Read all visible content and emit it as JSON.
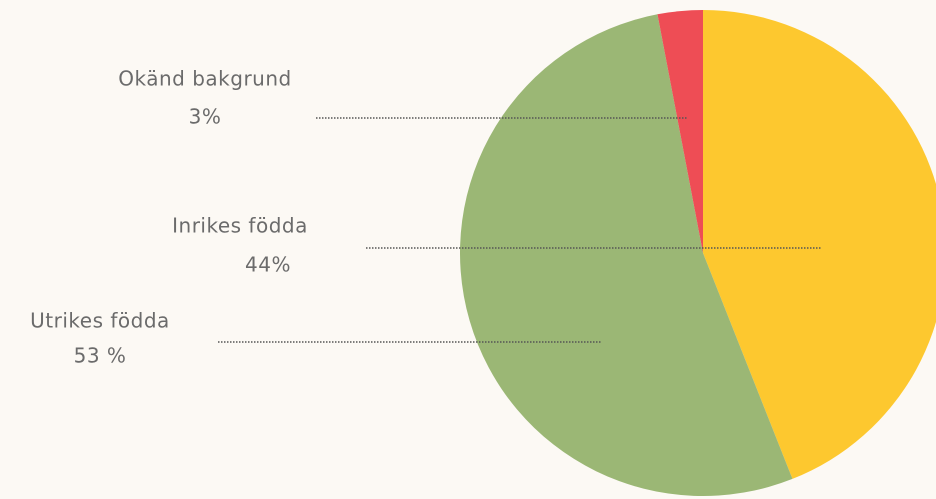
{
  "chart_data": {
    "type": "pie",
    "categories": [
      "Inrikes födda",
      "Utrikes födda",
      "Okänd bakgrund"
    ],
    "values": [
      44,
      53,
      3
    ],
    "value_labels": [
      "44%",
      "53 %",
      "3%"
    ],
    "colors": [
      "#fdc82f",
      "#9bb775",
      "#ee4d55"
    ]
  }
}
